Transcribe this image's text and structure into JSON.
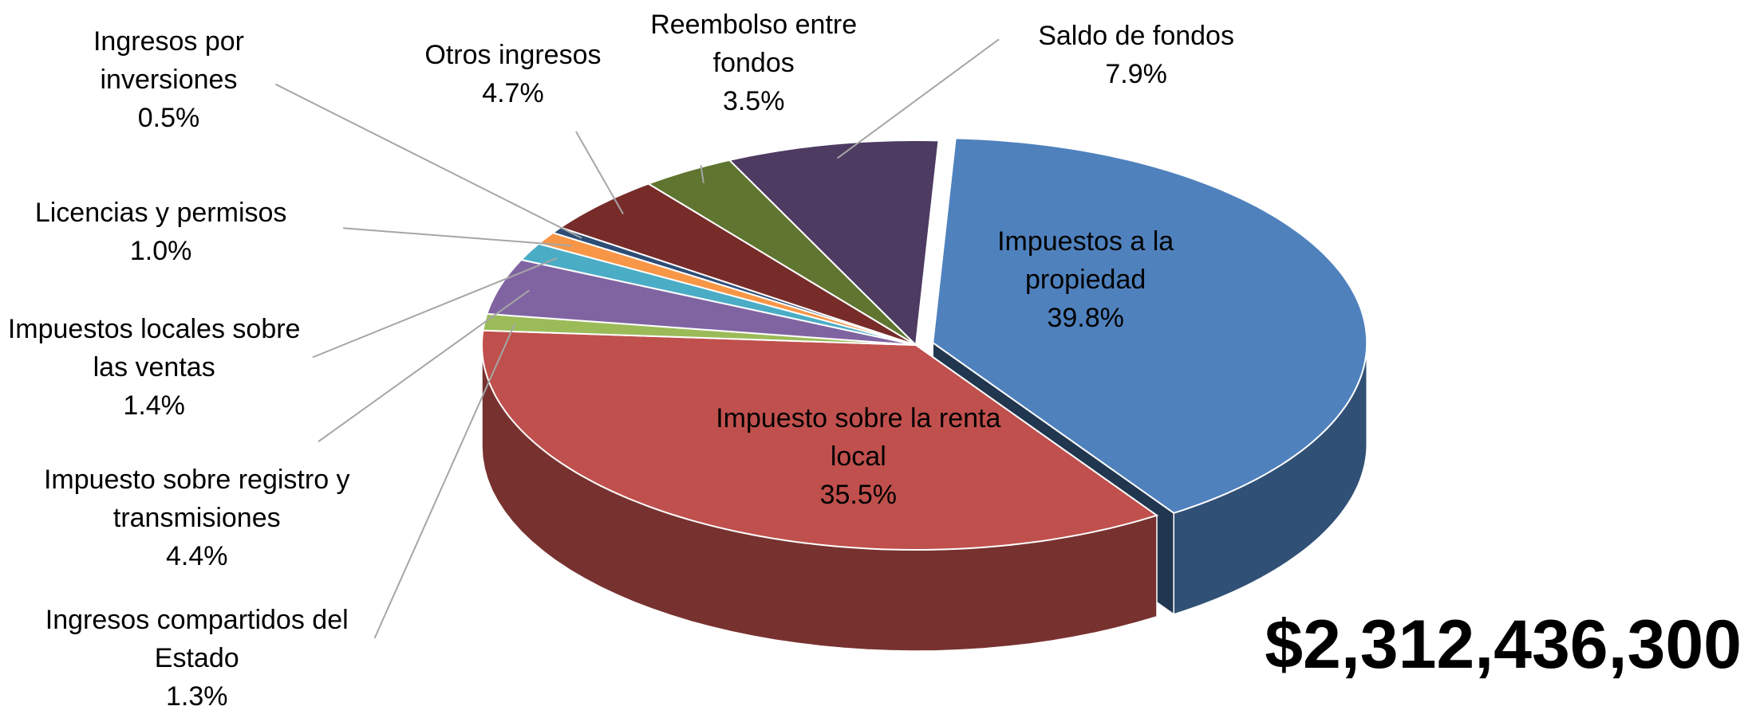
{
  "chart_data": {
    "type": "pie3d",
    "categories": [
      "Impuestos a la propiedad",
      "Impuesto sobre la renta local",
      "Ingresos compartidos del Estado",
      "Impuesto sobre registro y transmisiones",
      "Impuestos locales sobre las ventas",
      "Licencias y permisos",
      "Ingresos por inversiones",
      "Otros ingresos",
      "Reembolso entre fondos",
      "Saldo de fondos"
    ],
    "values": [
      39.8,
      35.5,
      1.3,
      4.4,
      1.4,
      1.0,
      0.5,
      4.7,
      3.5,
      7.9
    ],
    "value_labels": [
      "39.8%",
      "35.5%",
      "1.3%",
      "4.4%",
      "1.4%",
      "1.0%",
      "0.5%",
      "4.7%",
      "3.5%",
      "7.9%"
    ],
    "colors": [
      "#4f81bd",
      "#c0504d",
      "#9bbb59",
      "#8064a2",
      "#4bacc6",
      "#f79646",
      "#2c4d75",
      "#772c2a",
      "#5f7530",
      "#4d3b62"
    ],
    "total": "$2,312,436,300"
  }
}
